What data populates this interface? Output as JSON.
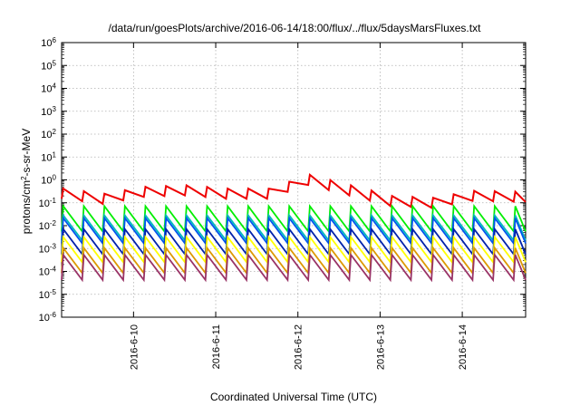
{
  "chart_data": {
    "type": "line",
    "title": "/data/run/goesPlots/archive/2016-06-14/18:00/flux/../flux/5daysMarsFluxes.txt",
    "xlabel": "Coordinated Universal Time (UTC)",
    "ylabel_main": "protons/cm",
    "ylabel_sup": "2",
    "ylabel_rest": "-s-sr-MeV",
    "x_range": [
      "2016-06-09 03:00",
      "2016-06-14 18:30"
    ],
    "x_ticks": [
      "2016-6-10",
      "2016-6-11",
      "2016-6-12",
      "2016-6-13",
      "2016-6-14"
    ],
    "y_scale": "log",
    "y_range": [
      1e-06,
      1000000.0
    ],
    "y_tick_exponents": [
      -6,
      -5,
      -4,
      -3,
      -2,
      -1,
      0,
      1,
      2,
      3,
      4,
      5,
      6
    ],
    "grid": true,
    "series": [
      {
        "color": "#ee0000",
        "sawtooth_hours": 6,
        "x_days": [
          0,
          0.5,
          1,
          1.5,
          2,
          2.5,
          3,
          3.5,
          4,
          4.5,
          5,
          5.65
        ],
        "values": [
          0.25,
          0.15,
          0.3,
          0.35,
          0.25,
          0.25,
          1.0,
          0.35,
          0.12,
          0.1,
          0.2,
          0.18
        ]
      },
      {
        "color": "#00ee00",
        "sawtooth_hours": 6,
        "x_days": [
          0,
          5.65
        ],
        "values": [
          0.02,
          0.02
        ]
      },
      {
        "color": "#00bbbb",
        "sawtooth_hours": 6,
        "x_days": [
          0,
          5.65
        ],
        "values": [
          0.008,
          0.008
        ]
      },
      {
        "color": "#0055ee",
        "sawtooth_hours": 6,
        "x_days": [
          0,
          5.65
        ],
        "values": [
          0.006,
          0.006
        ]
      },
      {
        "color": "#0022aa",
        "sawtooth_hours": 6,
        "x_days": [
          0,
          5.65
        ],
        "values": [
          0.002,
          0.002
        ]
      },
      {
        "color": "#ffff00",
        "sawtooth_hours": 6,
        "x_days": [
          0,
          5.65
        ],
        "values": [
          0.0009,
          0.0009
        ]
      },
      {
        "color": "#dd9900",
        "sawtooth_hours": 6,
        "x_days": [
          0,
          5.65
        ],
        "values": [
          0.0003,
          0.0003
        ]
      },
      {
        "color": "#993366",
        "sawtooth_hours": 6,
        "x_days": [
          0,
          5.65
        ],
        "values": [
          0.00015,
          0.00015
        ]
      }
    ]
  }
}
